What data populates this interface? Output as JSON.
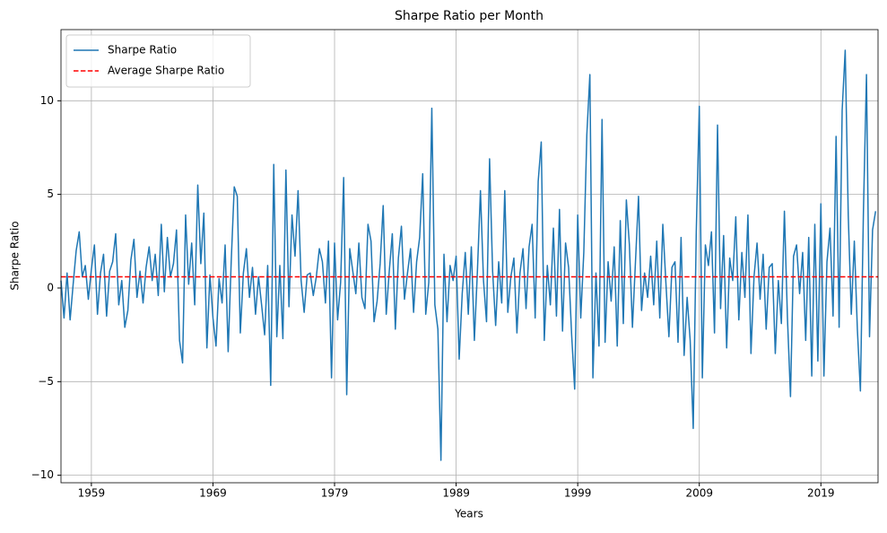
{
  "chart_data": {
    "type": "line",
    "title": "Sharpe Ratio per Month",
    "xlabel": "Years",
    "ylabel": "Sharpe Ratio",
    "x": [
      1956.5,
      1956.75,
      1957,
      1957.25,
      1957.5,
      1957.75,
      1958,
      1958.25,
      1958.5,
      1958.75,
      1959,
      1959.25,
      1959.5,
      1959.75,
      1960,
      1960.25,
      1960.5,
      1960.75,
      1961,
      1961.25,
      1961.5,
      1961.75,
      1962,
      1962.25,
      1962.5,
      1962.75,
      1963,
      1963.25,
      1963.5,
      1963.75,
      1964,
      1964.25,
      1964.5,
      1964.75,
      1965,
      1965.25,
      1965.5,
      1965.75,
      1966,
      1966.25,
      1966.5,
      1966.75,
      1967,
      1967.25,
      1967.5,
      1967.75,
      1968,
      1968.25,
      1968.5,
      1968.75,
      1969,
      1969.25,
      1969.5,
      1969.75,
      1970,
      1970.25,
      1970.5,
      1970.75,
      1971,
      1971.25,
      1971.5,
      1971.75,
      1972,
      1972.25,
      1972.5,
      1972.75,
      1973,
      1973.25,
      1973.5,
      1973.75,
      1974,
      1974.25,
      1974.5,
      1974.75,
      1975,
      1975.25,
      1975.5,
      1975.75,
      1976,
      1976.25,
      1976.5,
      1976.75,
      1977,
      1977.25,
      1977.5,
      1977.75,
      1978,
      1978.25,
      1978.5,
      1978.75,
      1979,
      1979.25,
      1979.5,
      1979.75,
      1980,
      1980.25,
      1980.5,
      1980.75,
      1981,
      1981.25,
      1981.5,
      1981.75,
      1982,
      1982.25,
      1982.5,
      1982.75,
      1983,
      1983.25,
      1983.5,
      1983.75,
      1984,
      1984.25,
      1984.5,
      1984.75,
      1985,
      1985.25,
      1985.5,
      1985.75,
      1986,
      1986.25,
      1986.5,
      1986.75,
      1987,
      1987.25,
      1987.5,
      1987.75,
      1988,
      1988.25,
      1988.5,
      1988.75,
      1989,
      1989.25,
      1989.5,
      1989.75,
      1990,
      1990.25,
      1990.5,
      1990.75,
      1991,
      1991.25,
      1991.5,
      1991.75,
      1992,
      1992.25,
      1992.5,
      1992.75,
      1993,
      1993.25,
      1993.5,
      1993.75,
      1994,
      1994.25,
      1994.5,
      1994.75,
      1995,
      1995.25,
      1995.5,
      1995.75,
      1996,
      1996.25,
      1996.5,
      1996.75,
      1997,
      1997.25,
      1997.5,
      1997.75,
      1998,
      1998.25,
      1998.5,
      1998.75,
      1999,
      1999.25,
      1999.5,
      1999.75,
      2000,
      2000.25,
      2000.5,
      2000.75,
      2001,
      2001.25,
      2001.5,
      2001.75,
      2002,
      2002.25,
      2002.5,
      2002.75,
      2003,
      2003.25,
      2003.5,
      2003.75,
      2004,
      2004.25,
      2004.5,
      2004.75,
      2005,
      2005.25,
      2005.5,
      2005.75,
      2006,
      2006.25,
      2006.5,
      2006.75,
      2007,
      2007.25,
      2007.5,
      2007.75,
      2008,
      2008.25,
      2008.5,
      2008.75,
      2009,
      2009.25,
      2009.5,
      2009.75,
      2010,
      2010.25,
      2010.5,
      2010.75,
      2011,
      2011.25,
      2011.5,
      2011.75,
      2012,
      2012.25,
      2012.5,
      2012.75,
      2013,
      2013.25,
      2013.5,
      2013.75,
      2014,
      2014.25,
      2014.5,
      2014.75,
      2015,
      2015.25,
      2015.5,
      2015.75,
      2016,
      2016.25,
      2016.5,
      2016.75,
      2017,
      2017.25,
      2017.5,
      2017.75,
      2018,
      2018.25,
      2018.5,
      2018.75,
      2019,
      2019.25,
      2019.5,
      2019.75,
      2020,
      2020.25,
      2020.5,
      2020.75,
      2021,
      2021.25,
      2021.5,
      2021.75,
      2022,
      2022.25,
      2022.5,
      2022.75,
      2023,
      2023.25,
      2023.5
    ],
    "series": [
      {
        "name": "Sharpe Ratio",
        "color": "#1f77b4",
        "values": [
          0.4,
          -1.6,
          0.8,
          -1.7,
          0.2,
          2.0,
          3.0,
          0.6,
          1.2,
          -0.6,
          1.0,
          2.3,
          -1.4,
          0.8,
          1.8,
          -1.5,
          0.9,
          1.4,
          2.9,
          -0.9,
          0.4,
          -2.1,
          -1.2,
          1.5,
          2.6,
          -0.5,
          0.9,
          -0.8,
          1.1,
          2.2,
          0.4,
          1.8,
          -0.4,
          3.4,
          -0.2,
          2.7,
          0.6,
          1.3,
          3.1,
          -2.8,
          -4.0,
          3.9,
          0.2,
          2.4,
          -0.9,
          5.5,
          1.3,
          4.0,
          -3.2,
          0.7,
          -1.6,
          -3.1,
          0.5,
          -0.8,
          2.3,
          -3.4,
          1.4,
          5.4,
          4.9,
          -2.4,
          0.8,
          2.1,
          -0.5,
          1.1,
          -1.4,
          0.6,
          -0.9,
          -2.5,
          1.2,
          -5.2,
          6.6,
          -2.6,
          1.2,
          -2.7,
          6.3,
          -1.0,
          3.9,
          1.7,
          5.2,
          0.4,
          -1.3,
          0.7,
          0.8,
          -0.4,
          0.6,
          2.1,
          1.4,
          -0.8,
          2.5,
          -4.8,
          2.4,
          -1.7,
          0.3,
          5.9,
          -5.7,
          2.1,
          0.9,
          -0.3,
          2.4,
          -0.5,
          -1.1,
          3.4,
          2.5,
          -1.8,
          -0.7,
          1.3,
          4.4,
          -1.4,
          0.9,
          2.9,
          -2.2,
          1.6,
          3.3,
          -0.6,
          0.8,
          2.1,
          -1.3,
          1.4,
          2.7,
          6.1,
          -1.4,
          0.3,
          9.6,
          -0.9,
          -2.2,
          -9.2,
          1.8,
          -1.8,
          1.2,
          0.4,
          1.7,
          -3.8,
          -0.3,
          1.9,
          -1.4,
          2.2,
          -2.8,
          0.9,
          5.2,
          0.4,
          -1.8,
          6.9,
          0.9,
          -2.0,
          1.4,
          -0.8,
          5.2,
          -1.3,
          0.6,
          1.6,
          -2.4,
          0.8,
          2.1,
          -1.1,
          2.2,
          3.4,
          -1.6,
          5.7,
          7.8,
          -2.8,
          1.2,
          -0.9,
          3.2,
          -1.5,
          4.2,
          -2.3,
          2.4,
          1.1,
          -2.5,
          -5.4,
          3.9,
          -1.6,
          1.9,
          8.2,
          11.4,
          -4.8,
          0.8,
          -3.1,
          9.0,
          -2.9,
          1.4,
          -0.7,
          2.2,
          -3.1,
          3.6,
          -1.9,
          4.7,
          2.3,
          -2.1,
          1.4,
          4.9,
          -1.2,
          0.8,
          -0.5,
          1.7,
          -0.9,
          2.5,
          -1.6,
          3.4,
          0.3,
          -2.6,
          1.1,
          1.4,
          -2.9,
          2.7,
          -3.6,
          -0.5,
          -2.8,
          -7.5,
          3.0,
          9.7,
          -4.8,
          2.3,
          1.2,
          3.0,
          -2.4,
          8.7,
          -1.1,
          2.8,
          -3.2,
          1.6,
          0.4,
          3.8,
          -1.7,
          1.9,
          -0.5,
          3.9,
          -3.5,
          0.6,
          2.4,
          -0.6,
          1.8,
          -2.2,
          1.1,
          1.3,
          -3.5,
          0.4,
          -1.9,
          4.1,
          -1.6,
          -5.8,
          1.7,
          2.3,
          -0.3,
          1.9,
          -2.8,
          2.7,
          -4.7,
          3.4,
          -3.9,
          4.5,
          -4.7,
          1.4,
          3.2,
          -1.5,
          8.1,
          -2.1,
          9.5,
          12.7,
          3.9,
          -1.4,
          2.5,
          -2.2,
          -5.5,
          4.1,
          11.4,
          -2.6,
          3.1,
          4.1
        ]
      }
    ],
    "hlines": [
      {
        "name": "Average Sharpe Ratio",
        "color": "#ff0000",
        "value": 0.6,
        "dashed": true
      }
    ],
    "xlim": [
      1956.5,
      2023.7
    ],
    "xticks": [
      1959,
      1969,
      1979,
      1989,
      1999,
      2009,
      2019
    ],
    "ylim": [
      -10.4,
      13.8
    ],
    "yticks": [
      {
        "value": -10,
        "label": "−10"
      },
      {
        "value": -5,
        "label": "−5"
      },
      0,
      5,
      10
    ],
    "grid": true,
    "legend": "upper left"
  }
}
